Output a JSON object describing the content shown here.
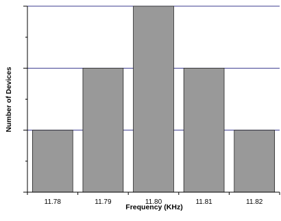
{
  "chart_data": {
    "type": "bar",
    "title": "",
    "xlabel": "Frequency (KHz)",
    "ylabel": "Number of Devices",
    "categories": [
      "11.78",
      "11.79",
      "11.80",
      "11.81",
      "11.82"
    ],
    "values": [
      1,
      2,
      3,
      2,
      1
    ],
    "ylim": [
      0,
      3
    ],
    "y_major_ticks": [
      0,
      1,
      2,
      3
    ],
    "y_minor_step": 0.5,
    "y_tick_labels_shown": false,
    "grid": "horizontal",
    "legend": "none",
    "colors": {
      "bar_fill": "#999999",
      "bar_stroke": "#222222",
      "gridline": "#3b3b8f",
      "axis": "#000000"
    }
  }
}
